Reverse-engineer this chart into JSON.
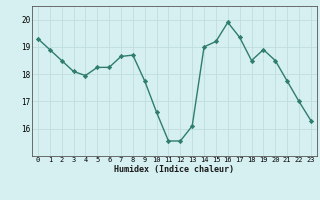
{
  "x": [
    0,
    1,
    2,
    3,
    4,
    5,
    6,
    7,
    8,
    9,
    10,
    11,
    12,
    13,
    14,
    15,
    16,
    17,
    18,
    19,
    20,
    21,
    22,
    23
  ],
  "y": [
    19.3,
    18.9,
    18.5,
    18.1,
    17.95,
    18.25,
    18.25,
    18.65,
    18.7,
    17.75,
    16.6,
    15.55,
    15.55,
    16.1,
    19.0,
    19.2,
    19.9,
    19.35,
    18.5,
    18.9,
    18.5,
    17.75,
    17.0,
    16.3
  ],
  "xlabel": "Humidex (Indice chaleur)",
  "ylim": [
    15.0,
    20.5
  ],
  "xlim": [
    -0.5,
    23.5
  ],
  "yticks": [
    16,
    17,
    18,
    19,
    20
  ],
  "xticks": [
    0,
    1,
    2,
    3,
    4,
    5,
    6,
    7,
    8,
    9,
    10,
    11,
    12,
    13,
    14,
    15,
    16,
    17,
    18,
    19,
    20,
    21,
    22,
    23
  ],
  "line_color": "#2e7d6e",
  "bg_color": "#d6eff0",
  "grid_color": "#c0dede",
  "marker": "D",
  "markersize": 2.2,
  "linewidth": 1.0
}
